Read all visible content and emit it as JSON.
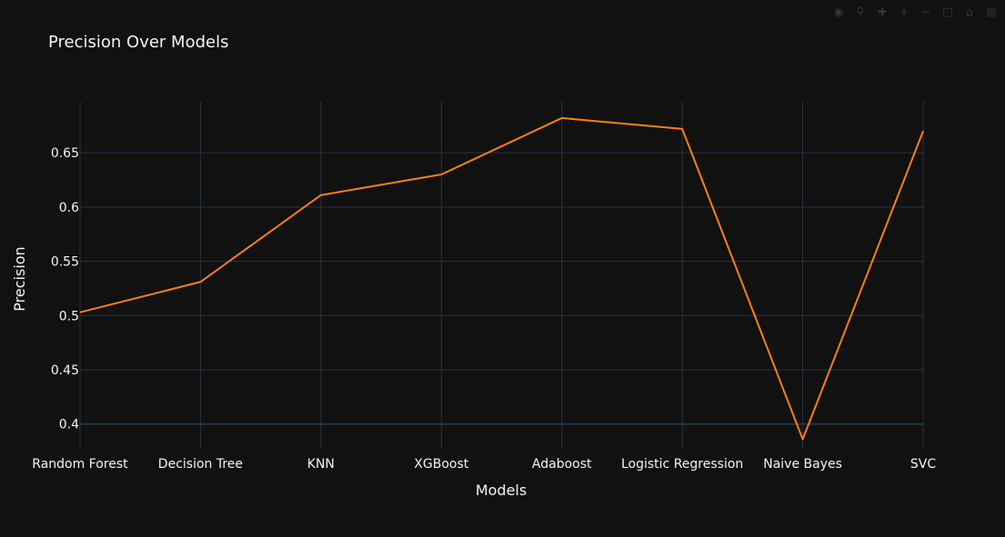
{
  "chart_data": {
    "type": "line",
    "title": "Precision Over Models",
    "xlabel": "Models",
    "ylabel": "Precision",
    "categories": [
      "Random Forest",
      "Decision Tree",
      "KNN",
      "XGBoost",
      "Adaboost",
      "Logistic Regression",
      "Naive Bayes",
      "SVC"
    ],
    "values": [
      0.503,
      0.531,
      0.611,
      0.63,
      0.682,
      0.672,
      0.386,
      0.67
    ],
    "ylim": [
      0.378,
      0.697
    ],
    "yticks": [
      0.4,
      0.45,
      0.5,
      0.55,
      0.6,
      0.65
    ],
    "ytick_labels": [
      "0.4",
      "0.45",
      "0.5",
      "0.55",
      "0.6",
      "0.65"
    ],
    "grid": true,
    "line_color": "#ff7f0e",
    "background_color": "#111111",
    "grid_color": "#283442",
    "text_color": "#f2f5fa"
  },
  "toolbar": {
    "icons": [
      "camera-icon",
      "zoom-icon",
      "pan-icon",
      "zoom-in-icon",
      "zoom-out-icon",
      "autoscale-icon",
      "reset-icon",
      "plotly-logo-icon"
    ]
  }
}
